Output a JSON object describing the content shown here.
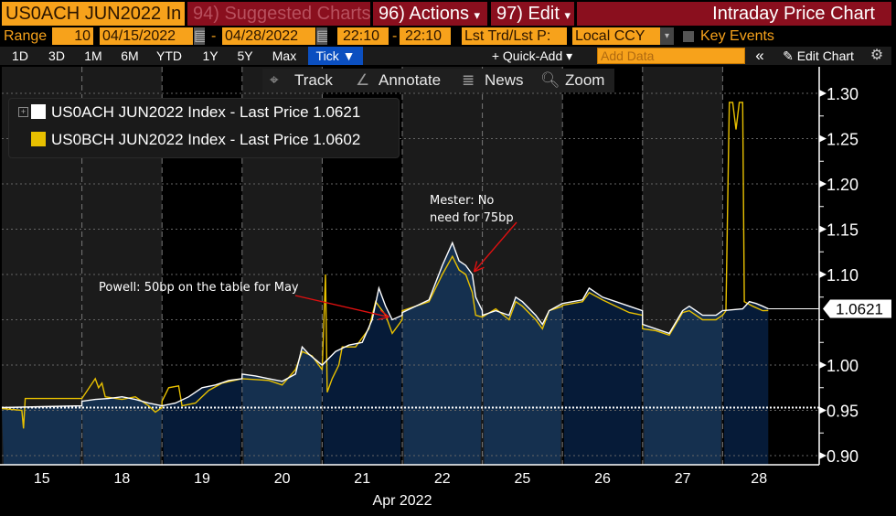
{
  "header": {
    "security": "US0ACH JUN2022 In",
    "suggested": "94) Suggested Charts",
    "actions": "96) Actions",
    "edit": "97) Edit",
    "title": "Intraday Price Chart",
    "caret": "▾"
  },
  "controls": {
    "range_label": "Range",
    "range_value": "10",
    "start_date": "04/15/2022",
    "end_date": "04/28/2022",
    "dash": "-",
    "start_time": "22:10",
    "end_time": "22:10",
    "price_type": "Lst Trd/Lst P:",
    "currency": "Local CCY",
    "key_events": "Key Events",
    "key_events_checked": false
  },
  "periods": [
    "1D",
    "3D",
    "1M",
    "6M",
    "YTD",
    "1Y",
    "5Y",
    "Max"
  ],
  "period_selected": "Tick ▼",
  "toolbar": {
    "quick_add": "+ Quick-Add ▾",
    "add_data_placeholder": "Add Data",
    "collapse": "«",
    "edit_chart": "Edit Chart",
    "track": "Track",
    "annotate": "Annotate",
    "news": "News",
    "zoom": "Zoom"
  },
  "colors": {
    "accent_orange": "#f7a21b",
    "header_red": "#8a0f1e",
    "tick_blue": "#0b4fc0",
    "series_white": "#ffffff",
    "series_yellow": "#e8c000",
    "annotation_arrow": "#e01010"
  },
  "chart_data": {
    "type": "line",
    "x_axis_label": "Apr 2022",
    "x_tick_labels": [
      "15",
      "18",
      "19",
      "20",
      "21",
      "22",
      "25",
      "26",
      "27",
      "28"
    ],
    "y_ticks": [
      "0.90",
      "0.95",
      "1.00",
      "1.05",
      "1.10",
      "1.15",
      "1.20",
      "1.25",
      "1.30"
    ],
    "ylim": [
      0.9,
      1.3
    ],
    "grid": true,
    "legend_position": "top-left",
    "reference_line": 0.953,
    "last_value_label": "1.0621",
    "series": [
      {
        "name": "US0ACH JUN2022 Index - Last Price 1.0621",
        "color": "#ffffff",
        "filled": true,
        "points": [
          [
            "04/15",
            "00:00",
            0.953
          ],
          [
            "04/15",
            "12:00",
            0.954
          ],
          [
            "04/15",
            "23:59",
            0.955
          ],
          [
            "04/18",
            "00:00",
            0.96
          ],
          [
            "04/18",
            "04:00",
            0.962
          ],
          [
            "04/18",
            "08:00",
            0.963
          ],
          [
            "04/18",
            "12:00",
            0.965
          ],
          [
            "04/18",
            "16:00",
            0.962
          ],
          [
            "04/18",
            "20:00",
            0.958
          ],
          [
            "04/18",
            "23:59",
            0.955
          ],
          [
            "04/19",
            "00:00",
            0.955
          ],
          [
            "04/19",
            "04:00",
            0.958
          ],
          [
            "04/19",
            "08:00",
            0.965
          ],
          [
            "04/19",
            "12:00",
            0.975
          ],
          [
            "04/19",
            "16:00",
            0.978
          ],
          [
            "04/19",
            "20:00",
            0.983
          ],
          [
            "04/19",
            "23:59",
            0.985
          ],
          [
            "04/20",
            "00:00",
            0.99
          ],
          [
            "04/20",
            "04:00",
            0.988
          ],
          [
            "04/20",
            "08:00",
            0.985
          ],
          [
            "04/20",
            "12:00",
            0.982
          ],
          [
            "04/20",
            "16:00",
            0.99
          ],
          [
            "04/20",
            "18:00",
            1.02
          ],
          [
            "04/20",
            "20:00",
            1.012
          ],
          [
            "04/20",
            "23:59",
            1.0
          ],
          [
            "04/21",
            "00:00",
            1.0
          ],
          [
            "04/21",
            "04:00",
            1.015
          ],
          [
            "04/21",
            "08:00",
            1.022
          ],
          [
            "04/21",
            "12:00",
            1.025
          ],
          [
            "04/21",
            "15:00",
            1.05
          ],
          [
            "04/21",
            "17:00",
            1.085
          ],
          [
            "04/21",
            "19:00",
            1.065
          ],
          [
            "04/21",
            "21:00",
            1.05
          ],
          [
            "04/21",
            "23:59",
            1.055
          ],
          [
            "04/22",
            "00:00",
            1.058
          ],
          [
            "04/22",
            "04:00",
            1.065
          ],
          [
            "04/22",
            "08:00",
            1.072
          ],
          [
            "04/22",
            "12:00",
            1.11
          ],
          [
            "04/22",
            "15:00",
            1.135
          ],
          [
            "04/22",
            "17:00",
            1.115
          ],
          [
            "04/22",
            "19:00",
            1.11
          ],
          [
            "04/22",
            "21:00",
            1.1
          ],
          [
            "04/22",
            "22:00",
            1.075
          ],
          [
            "04/22",
            "23:59",
            1.06
          ],
          [
            "04/25",
            "00:00",
            1.055
          ],
          [
            "04/25",
            "04:00",
            1.06
          ],
          [
            "04/25",
            "08:00",
            1.055
          ],
          [
            "04/25",
            "10:00",
            1.075
          ],
          [
            "04/25",
            "12:00",
            1.07
          ],
          [
            "04/25",
            "16:00",
            1.055
          ],
          [
            "04/25",
            "18:00",
            1.045
          ],
          [
            "04/25",
            "20:00",
            1.06
          ],
          [
            "04/25",
            "23:59",
            1.068
          ],
          [
            "04/26",
            "00:00",
            1.068
          ],
          [
            "04/26",
            "06:00",
            1.072
          ],
          [
            "04/26",
            "08:00",
            1.085
          ],
          [
            "04/26",
            "12:00",
            1.075
          ],
          [
            "04/26",
            "16:00",
            1.07
          ],
          [
            "04/26",
            "20:00",
            1.065
          ],
          [
            "04/26",
            "23:59",
            1.06
          ],
          [
            "04/27",
            "00:00",
            1.045
          ],
          [
            "04/27",
            "04:00",
            1.04
          ],
          [
            "04/27",
            "08:00",
            1.035
          ],
          [
            "04/27",
            "12:00",
            1.06
          ],
          [
            "04/27",
            "14:00",
            1.065
          ],
          [
            "04/27",
            "18:00",
            1.055
          ],
          [
            "04/27",
            "22:00",
            1.055
          ],
          [
            "04/27",
            "23:59",
            1.06
          ],
          [
            "04/28",
            "00:00",
            1.06
          ],
          [
            "04/28",
            "06:00",
            1.062
          ],
          [
            "04/28",
            "08:00",
            1.07
          ],
          [
            "04/28",
            "10:00",
            1.068
          ],
          [
            "04/28",
            "12:00",
            1.065
          ],
          [
            "04/28",
            "13:40",
            1.0621
          ]
        ]
      },
      {
        "name": "US0BCH JUN2022 Index - Last Price 1.0602",
        "color": "#e8c000",
        "filled": false,
        "points": [
          [
            "04/15",
            "00:00",
            0.952
          ],
          [
            "04/15",
            "06:00",
            0.95
          ],
          [
            "04/15",
            "06:30",
            0.93
          ],
          [
            "04/15",
            "07:00",
            0.963
          ],
          [
            "04/15",
            "23:59",
            0.963
          ],
          [
            "04/18",
            "00:00",
            0.963
          ],
          [
            "04/18",
            "04:00",
            0.985
          ],
          [
            "04/18",
            "05:00",
            0.975
          ],
          [
            "04/18",
            "06:00",
            0.98
          ],
          [
            "04/18",
            "07:00",
            0.965
          ],
          [
            "04/18",
            "12:00",
            0.962
          ],
          [
            "04/18",
            "16:00",
            0.965
          ],
          [
            "04/18",
            "20:00",
            0.955
          ],
          [
            "04/18",
            "22:00",
            0.948
          ],
          [
            "04/18",
            "23:59",
            0.953
          ],
          [
            "04/19",
            "00:00",
            0.96
          ],
          [
            "04/19",
            "02:00",
            0.975
          ],
          [
            "04/19",
            "05:00",
            0.977
          ],
          [
            "04/19",
            "06:00",
            0.955
          ],
          [
            "04/19",
            "10:00",
            0.958
          ],
          [
            "04/19",
            "14:00",
            0.972
          ],
          [
            "04/19",
            "18:00",
            0.98
          ],
          [
            "04/19",
            "23:59",
            0.985
          ],
          [
            "04/20",
            "00:00",
            0.985
          ],
          [
            "04/20",
            "08:00",
            0.983
          ],
          [
            "04/20",
            "12:00",
            0.978
          ],
          [
            "04/20",
            "16:00",
            0.995
          ],
          [
            "04/20",
            "18:00",
            1.015
          ],
          [
            "04/20",
            "21:00",
            1.01
          ],
          [
            "04/20",
            "23:59",
            0.995
          ],
          [
            "04/21",
            "00:00",
            0.995
          ],
          [
            "04/21",
            "01:00",
            1.1
          ],
          [
            "04/21",
            "01:30",
            0.97
          ],
          [
            "04/21",
            "03:00",
            0.985
          ],
          [
            "04/21",
            "05:00",
            1.0
          ],
          [
            "04/21",
            "06:00",
            1.02
          ],
          [
            "04/21",
            "10:00",
            1.02
          ],
          [
            "04/21",
            "14:00",
            1.04
          ],
          [
            "04/21",
            "16:00",
            1.07
          ],
          [
            "04/21",
            "19:00",
            1.055
          ],
          [
            "04/21",
            "21:00",
            1.035
          ],
          [
            "04/21",
            "23:59",
            1.05
          ],
          [
            "04/22",
            "00:00",
            1.06
          ],
          [
            "04/22",
            "04:00",
            1.065
          ],
          [
            "04/22",
            "08:00",
            1.07
          ],
          [
            "04/22",
            "12:00",
            1.1
          ],
          [
            "04/22",
            "15:00",
            1.12
          ],
          [
            "04/22",
            "17:00",
            1.105
          ],
          [
            "04/22",
            "19:00",
            1.1
          ],
          [
            "04/22",
            "21:00",
            1.08
          ],
          [
            "04/22",
            "22:00",
            1.055
          ],
          [
            "04/22",
            "23:59",
            1.053
          ],
          [
            "04/25",
            "00:00",
            1.053
          ],
          [
            "04/25",
            "04:00",
            1.062
          ],
          [
            "04/25",
            "08:00",
            1.05
          ],
          [
            "04/25",
            "10:00",
            1.07
          ],
          [
            "04/25",
            "12:00",
            1.065
          ],
          [
            "04/25",
            "16:00",
            1.05
          ],
          [
            "04/25",
            "18:00",
            1.04
          ],
          [
            "04/25",
            "20:00",
            1.06
          ],
          [
            "04/25",
            "23:59",
            1.065
          ],
          [
            "04/26",
            "00:00",
            1.066
          ],
          [
            "04/26",
            "06:00",
            1.07
          ],
          [
            "04/26",
            "08:00",
            1.08
          ],
          [
            "04/26",
            "12:00",
            1.072
          ],
          [
            "04/26",
            "16:00",
            1.065
          ],
          [
            "04/26",
            "20:00",
            1.058
          ],
          [
            "04/26",
            "23:59",
            1.055
          ],
          [
            "04/27",
            "00:00",
            1.04
          ],
          [
            "04/27",
            "04:00",
            1.038
          ],
          [
            "04/27",
            "08:00",
            1.033
          ],
          [
            "04/27",
            "12:00",
            1.058
          ],
          [
            "04/27",
            "14:00",
            1.06
          ],
          [
            "04/27",
            "18:00",
            1.05
          ],
          [
            "04/27",
            "22:00",
            1.05
          ],
          [
            "04/27",
            "23:59",
            1.055
          ],
          [
            "04/28",
            "00:00",
            1.055
          ],
          [
            "04/28",
            "01:00",
            1.06
          ],
          [
            "04/28",
            "02:00",
            1.29
          ],
          [
            "04/28",
            "03:00",
            1.29
          ],
          [
            "04/28",
            "04:00",
            1.26
          ],
          [
            "04/28",
            "05:00",
            1.29
          ],
          [
            "04/28",
            "06:00",
            1.29
          ],
          [
            "04/28",
            "06:30",
            1.07
          ],
          [
            "04/28",
            "09:00",
            1.065
          ],
          [
            "04/28",
            "12:00",
            1.06
          ],
          [
            "04/28",
            "13:40",
            1.0602
          ]
        ]
      }
    ],
    "annotations": [
      {
        "text": "Powell: 50bp on the table for May",
        "date": "04/21",
        "time": "20:00",
        "value": 1.053
      },
      {
        "text": "Mester: No",
        "text2": "need for 75bp",
        "date": "04/22",
        "time": "21:30",
        "value": 1.103
      }
    ]
  }
}
